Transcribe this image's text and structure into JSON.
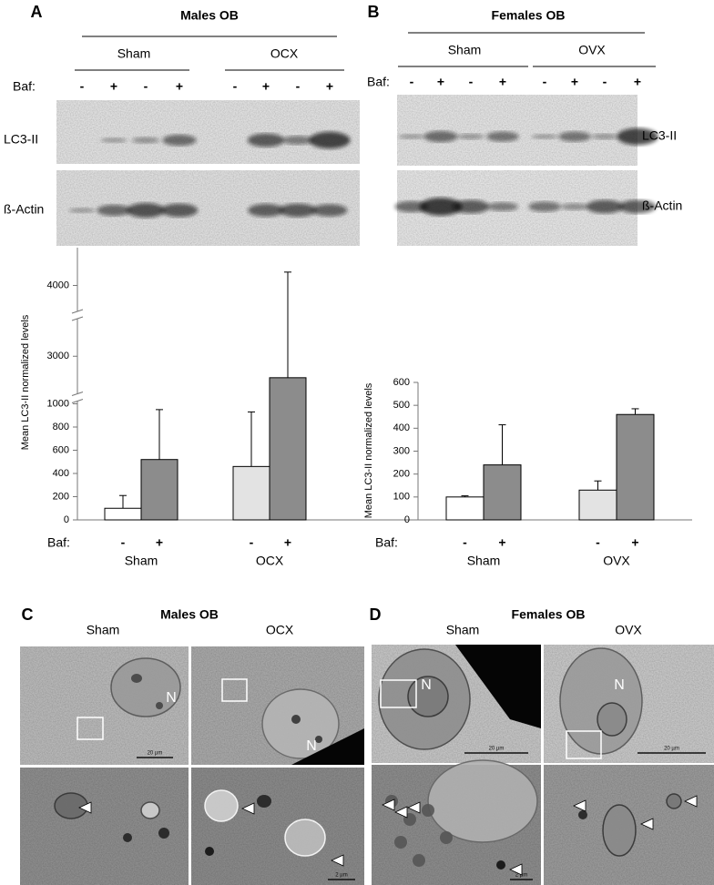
{
  "panel_a": {
    "letter": "A",
    "title": "Males OB",
    "groups": [
      "Sham",
      "OCX"
    ],
    "baf_label": "Baf:",
    "baf_signs": [
      "-",
      "+",
      "-",
      "+",
      "-",
      "+",
      "-",
      "+"
    ],
    "bands": [
      "LC3-II",
      "ß-Actin"
    ]
  },
  "panel_b": {
    "letter": "B",
    "title": "Females OB",
    "groups": [
      "Sham",
      "OVX"
    ],
    "baf_label": "Baf:",
    "baf_signs": [
      "-",
      "+",
      "-",
      "+",
      "-",
      "+",
      "-",
      "+"
    ],
    "bands": [
      "LC3-II",
      "ß-Actin"
    ]
  },
  "chart_data": [
    {
      "type": "bar",
      "y_label": "Mean LC3-II normalized levels",
      "x_prefix": "Baf:",
      "categories": [
        "Sham",
        "OCX"
      ],
      "series": [
        {
          "name": "-",
          "colors": [
            "#ffffff",
            "#e3e3e3"
          ],
          "values": [
            100,
            460
          ],
          "errors": [
            110,
            470
          ]
        },
        {
          "name": "+",
          "colors": [
            "#8c8c8c",
            "#8c8c8c"
          ],
          "values": [
            520,
            2815
          ],
          "errors": [
            430,
            1300
          ]
        }
      ],
      "ylim": [
        0,
        4200
      ],
      "axis_breaks": [
        [
          1000,
          2700
        ],
        [
          3300,
          3800
        ]
      ],
      "yticks": [
        0,
        200,
        400,
        600,
        800,
        1000,
        3000,
        4000
      ]
    },
    {
      "type": "bar",
      "y_label": "Mean LC3-II normalized levels",
      "x_prefix": "Baf:",
      "categories": [
        "Sham",
        "OVX"
      ],
      "series": [
        {
          "name": "-",
          "colors": [
            "#ffffff",
            "#e3e3e3"
          ],
          "values": [
            100,
            130
          ],
          "errors": [
            5,
            40
          ]
        },
        {
          "name": "+",
          "colors": [
            "#8c8c8c",
            "#8c8c8c"
          ],
          "values": [
            240,
            460
          ],
          "errors": [
            175,
            25
          ]
        }
      ],
      "ylim": [
        0,
        600
      ],
      "yticks": [
        0,
        100,
        200,
        300,
        400,
        500,
        600
      ]
    }
  ],
  "panel_c": {
    "letter": "C",
    "title": "Males OB",
    "groups": [
      "Sham",
      "OCX"
    ],
    "nucleus": [
      "N",
      "N"
    ],
    "scale": [
      "20 µm",
      "2 µm"
    ]
  },
  "panel_d": {
    "letter": "D",
    "title": "Females OB",
    "groups": [
      "Sham",
      "OVX"
    ],
    "nucleus": [
      "N",
      "N"
    ],
    "scale": [
      "20 µm",
      "20 µm",
      "2 µm"
    ]
  }
}
